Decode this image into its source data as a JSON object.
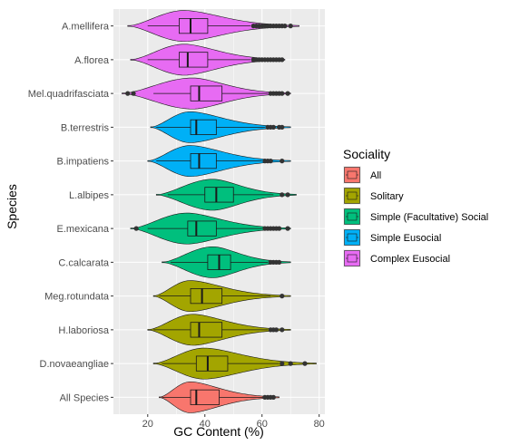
{
  "chart_data": {
    "type": "violin",
    "xlabel": "GC Content (%)",
    "ylabel": "Species",
    "xlim": [
      8,
      82
    ],
    "xticks": [
      20,
      40,
      60,
      80
    ],
    "grid": true,
    "legend": {
      "title": "Sociality",
      "placement": "right",
      "entries": [
        {
          "label": "All",
          "color": "#F8766D"
        },
        {
          "label": "Solitary",
          "color": "#A3A500"
        },
        {
          "label": "Simple (Facultative) Social",
          "color": "#00BF7D"
        },
        {
          "label": "Simple Eusocial",
          "color": "#00B0F6"
        },
        {
          "label": "Complex Eusocial",
          "color": "#E76BF3"
        }
      ]
    },
    "categories": [
      "A.mellifera",
      "A.florea",
      "Mel.quadrifasciata",
      "B.terrestris",
      "B.impatiens",
      "L.albipes",
      "E.mexicana",
      "C.calcarata",
      "Meg.rotundata",
      "H.laboriosa",
      "D.novaeangliae",
      "All Species"
    ],
    "series": [
      {
        "category": "A.mellifera",
        "sociality": "Complex Eusocial",
        "min": 13,
        "max": 73,
        "mode": 33,
        "q1": 31,
        "median": 35,
        "q3": 41,
        "whisker_low": 20,
        "whisker_high": 56,
        "outliers": [
          57,
          58,
          59,
          60,
          61,
          62,
          63,
          64,
          65,
          66,
          67,
          68,
          70
        ]
      },
      {
        "category": "A.florea",
        "sociality": "Complex Eusocial",
        "min": 14,
        "max": 68,
        "mode": 33,
        "q1": 31,
        "median": 34,
        "q3": 41,
        "whisker_low": 20,
        "whisker_high": 56,
        "outliers": [
          57,
          58,
          59,
          60,
          61,
          62,
          63,
          64,
          65,
          66,
          67
        ]
      },
      {
        "category": "Mel.quadrifasciata",
        "sociality": "Complex Eusocial",
        "min": 11,
        "max": 70,
        "mode": 36,
        "q1": 35,
        "median": 38,
        "q3": 46,
        "whisker_low": 22,
        "whisker_high": 62,
        "outliers": [
          13,
          15,
          63,
          64,
          65,
          66,
          67,
          69
        ]
      },
      {
        "category": "B.terrestris",
        "sociality": "Simple Eusocial",
        "min": 21,
        "max": 70,
        "mode": 35,
        "q1": 35,
        "median": 37,
        "q3": 44,
        "whisker_low": 23,
        "whisker_high": 61,
        "outliers": [
          62,
          63,
          64,
          66,
          67
        ]
      },
      {
        "category": "B.impatiens",
        "sociality": "Simple Eusocial",
        "min": 20,
        "max": 70,
        "mode": 35,
        "q1": 35,
        "median": 38,
        "q3": 44,
        "whisker_low": 23,
        "whisker_high": 60,
        "outliers": [
          61,
          62,
          63,
          67
        ]
      },
      {
        "category": "L.albipes",
        "sociality": "Simple (Facultative) Social",
        "min": 23,
        "max": 72,
        "mode": 43,
        "q1": 40,
        "median": 44,
        "q3": 50,
        "whisker_low": 27,
        "whisker_high": 64,
        "outliers": [
          67,
          69
        ]
      },
      {
        "category": "E.mexicana",
        "sociality": "Simple (Facultative) Social",
        "min": 14,
        "max": 70,
        "mode": 34,
        "q1": 34,
        "median": 37,
        "q3": 44,
        "whisker_low": 20,
        "whisker_high": 60,
        "outliers": [
          16,
          61,
          62,
          63,
          64,
          65,
          66,
          69
        ]
      },
      {
        "category": "C.calcarata",
        "sociality": "Simple (Facultative) Social",
        "min": 25,
        "max": 70,
        "mode": 43,
        "q1": 41,
        "median": 45,
        "q3": 49,
        "whisker_low": 28,
        "whisker_high": 62,
        "outliers": [
          63,
          64,
          65,
          66
        ]
      },
      {
        "category": "Meg.rotundata",
        "sociality": "Solitary",
        "min": 22,
        "max": 70,
        "mode": 35,
        "q1": 35,
        "median": 39,
        "q3": 46,
        "whisker_low": 24,
        "whisker_high": 63,
        "outliers": [
          67
        ]
      },
      {
        "category": "H.laboriosa",
        "sociality": "Solitary",
        "min": 20,
        "max": 70,
        "mode": 36,
        "q1": 35,
        "median": 38,
        "q3": 46,
        "whisker_low": 22,
        "whisker_high": 62,
        "outliers": [
          63,
          64,
          65,
          67
        ]
      },
      {
        "category": "D.novaeangliae",
        "sociality": "Solitary",
        "min": 22,
        "max": 79,
        "mode": 40,
        "q1": 37,
        "median": 41,
        "q3": 48,
        "whisker_low": 25,
        "whisker_high": 66,
        "outliers": [
          67,
          70,
          75
        ]
      },
      {
        "category": "All Species",
        "sociality": "All",
        "min": 24,
        "max": 66,
        "mode": 35,
        "q1": 35,
        "median": 37,
        "q3": 45,
        "whisker_low": 25,
        "whisker_high": 61,
        "outliers": [
          61,
          62,
          63,
          64
        ]
      }
    ]
  }
}
